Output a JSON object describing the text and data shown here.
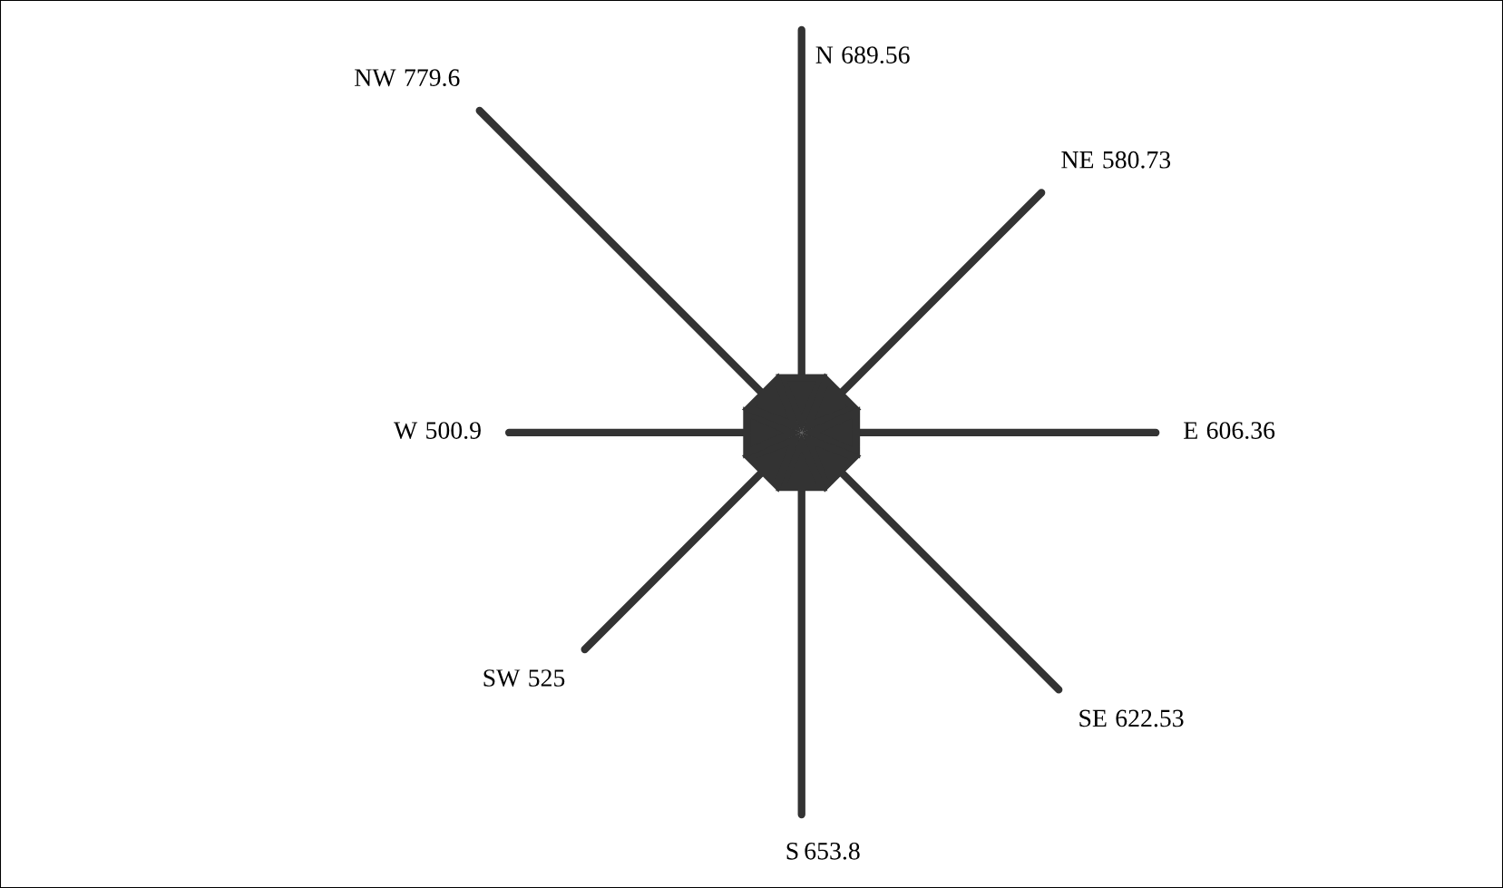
{
  "chart_data": {
    "type": "other",
    "categories": [
      "N",
      "NE",
      "E",
      "SE",
      "S",
      "SW",
      "W",
      "NW"
    ],
    "values": [
      689.56,
      580.73,
      606.36,
      622.53,
      653.8,
      525,
      500.9,
      779.6
    ],
    "color": "#333333",
    "data_labels": true
  }
}
